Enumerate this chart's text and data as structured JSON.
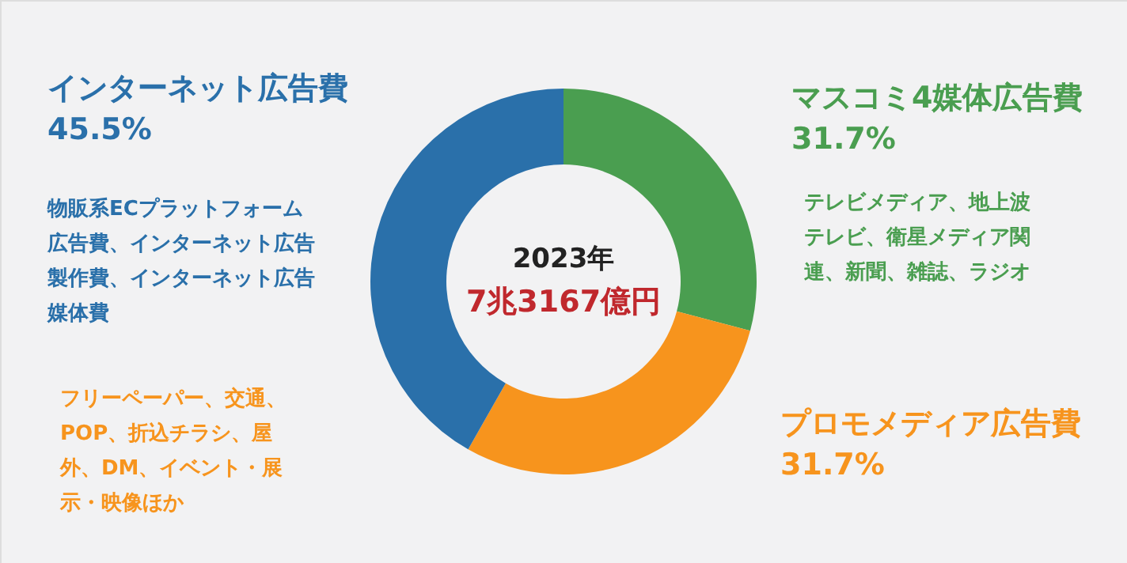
{
  "chart_data": {
    "type": "donut",
    "title": "2023年",
    "subtitle": "7兆3167億円",
    "categories": [
      "マスコミ4媒体広告費",
      "プロモメディア広告費",
      "インターネット広告費"
    ],
    "values": [
      31.7,
      31.7,
      45.5
    ],
    "value_labels": [
      "31.7%",
      "31.7%",
      "45.5%"
    ],
    "colors": [
      "#4a9e50",
      "#f7941d",
      "#2a70aa"
    ],
    "annotations": [
      "テレビメディア、地上波テレビ、衛星メディア関連、新聞、雑誌、ラジオ",
      "フリーペーパー、交通、POP、折込チラシ、屋外、DM、イベント・展示・映像ほか",
      "物販系ECプラットフォーム広告費、インターネット広告製作費、インターネット広告媒体費"
    ]
  }
}
